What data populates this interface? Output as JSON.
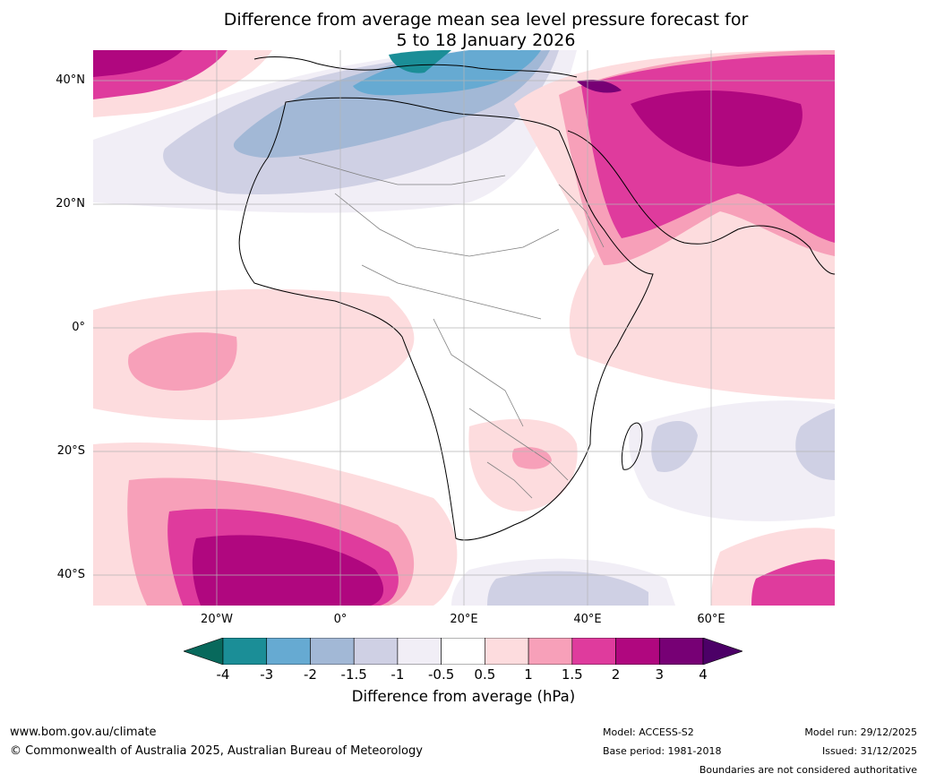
{
  "title": {
    "line1": "Difference from average mean sea level pressure forecast for",
    "line2": "5 to 18 January 2026"
  },
  "axes": {
    "lat_labels": [
      "40°N",
      "20°N",
      "0°",
      "20°S",
      "40°S"
    ],
    "lon_labels": [
      "20°W",
      "0°",
      "20°E",
      "40°E",
      "60°E"
    ],
    "lat_range": [
      -45,
      45
    ],
    "lon_range": [
      -40,
      80
    ]
  },
  "legend": {
    "ticks": [
      "-4",
      "-3",
      "-2",
      "-1.5",
      "-1",
      "-0.5",
      "0.5",
      "1",
      "1.5",
      "2",
      "3",
      "4"
    ],
    "colors": [
      "#08695c",
      "#1b8e97",
      "#66aad2",
      "#a2b8d6",
      "#cfd0e4",
      "#f1eef6",
      "#ffffff",
      "#fddcde",
      "#f7a0b9",
      "#df3b9d",
      "#b0077f",
      "#770075",
      "#4c0067"
    ],
    "label": "Difference from average (hPa)"
  },
  "footer": {
    "website": "www.bom.gov.au/climate",
    "copyright": "© Commonwealth of Australia 2025, Australian Bureau of Meteorology",
    "model": "Model: ACCESS-S2",
    "base_period": "Base period: 1981-2018",
    "model_run": "Model run: 29/12/2025",
    "issued": "Issued: 31/12/2025",
    "disclaimer": "Boundaries are not considered authoritative"
  }
}
